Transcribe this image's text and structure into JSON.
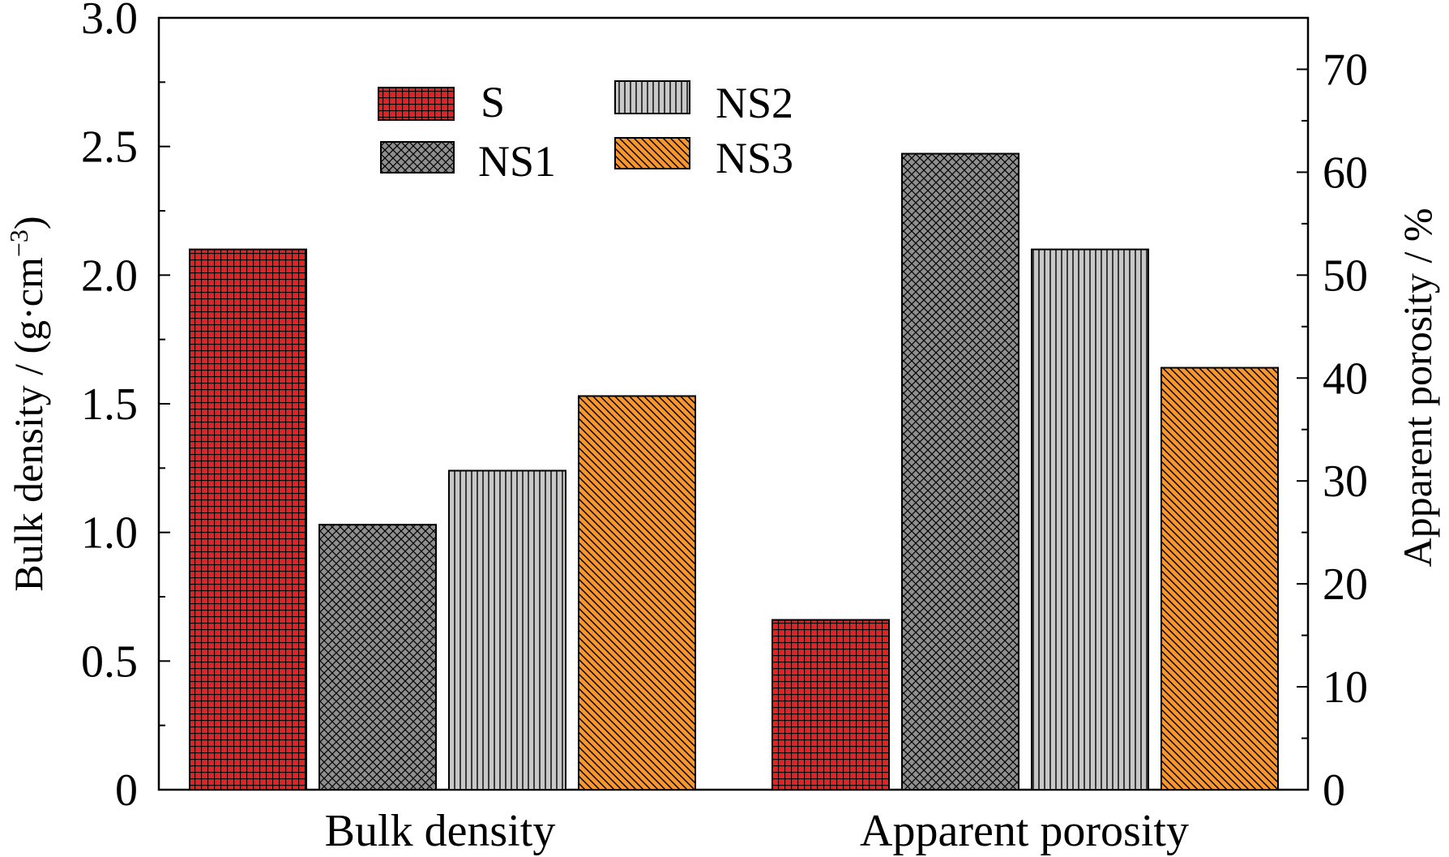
{
  "chart_data": {
    "type": "bar",
    "groups": [
      "Bulk density",
      "Apparent porosity"
    ],
    "series": [
      {
        "name": "S",
        "color": "#e02323",
        "pattern": "grid",
        "bulk_density": 2.1,
        "apparent_porosity": 16.5
      },
      {
        "name": "NS1",
        "color": "#8f8f8f",
        "pattern": "crosshatch",
        "bulk_density": 1.03,
        "apparent_porosity": 61.8
      },
      {
        "name": "NS2",
        "color": "#c8c8c8",
        "pattern": "vertical-lines",
        "bulk_density": 1.24,
        "apparent_porosity": 52.5
      },
      {
        "name": "NS3",
        "color": "#f7962f",
        "pattern": "diagonal-lines",
        "bulk_density": 1.53,
        "apparent_porosity": 41.0
      }
    ],
    "left_axis": {
      "label": "Bulk density / (g·cm",
      "label_sup": "−3",
      "label_end": ")",
      "ylim": [
        0,
        3.0
      ],
      "ticks": [
        "0",
        "0.5",
        "1.0",
        "1.5",
        "2.0",
        "2.5",
        "3.0"
      ],
      "tick_values": [
        0,
        0.5,
        1.0,
        1.5,
        2.0,
        2.5,
        3.0
      ]
    },
    "right_axis": {
      "label": "Apparent porosity / %",
      "ylim": [
        0,
        75
      ],
      "ticks": [
        "0",
        "10",
        "20",
        "30",
        "40",
        "50",
        "60",
        "70"
      ],
      "tick_values": [
        0,
        10,
        20,
        30,
        40,
        50,
        60,
        70
      ]
    },
    "legend": {
      "placement": "top-left",
      "columns": 2
    },
    "grid": false
  }
}
